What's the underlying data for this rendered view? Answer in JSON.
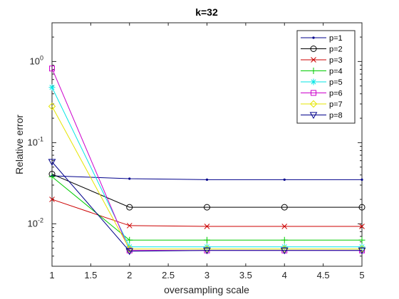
{
  "chart_data": {
    "type": "line",
    "title": "k=32",
    "xlabel": "oversampling scale",
    "ylabel": "Relative error",
    "yscale": "log",
    "xlim": [
      1,
      5
    ],
    "ylim": [
      0.003,
      3
    ],
    "grid": false,
    "legend_position": "top-right",
    "x_ticks": [
      "1",
      "1.5",
      "2",
      "2.5",
      "3",
      "3.5",
      "4",
      "4.5",
      "5"
    ],
    "y_ticks": [
      {
        "value": 0.01,
        "mantissa": "10",
        "exp": "-2"
      },
      {
        "value": 0.1,
        "mantissa": "10",
        "exp": "-1"
      },
      {
        "value": 1,
        "mantissa": "10",
        "exp": "0"
      }
    ],
    "x": [
      1,
      2,
      3,
      4,
      5
    ],
    "series": [
      {
        "name": "p=1",
        "color": "#00008b",
        "marker": "dot",
        "values": [
          0.039,
          0.036,
          0.035,
          0.035,
          0.035
        ]
      },
      {
        "name": "p=2",
        "color": "#000000",
        "marker": "circle",
        "values": [
          0.041,
          0.016,
          0.016,
          0.016,
          0.016
        ]
      },
      {
        "name": "p=3",
        "color": "#cc0000",
        "marker": "x",
        "values": [
          0.02,
          0.0095,
          0.0093,
          0.0093,
          0.0093
        ]
      },
      {
        "name": "p=4",
        "color": "#00cc00",
        "marker": "plus",
        "values": [
          0.038,
          0.0063,
          0.0063,
          0.0063,
          0.0063
        ]
      },
      {
        "name": "p=5",
        "color": "#00e5e5",
        "marker": "star",
        "values": [
          0.48,
          0.0052,
          0.0052,
          0.0052,
          0.0052
        ]
      },
      {
        "name": "p=6",
        "color": "#cc00cc",
        "marker": "square",
        "values": [
          0.82,
          0.0047,
          0.0047,
          0.0047,
          0.0047
        ]
      },
      {
        "name": "p=7",
        "color": "#e5e500",
        "marker": "diamond",
        "values": [
          0.28,
          0.0049,
          0.0049,
          0.0049,
          0.0049
        ]
      },
      {
        "name": "p=8",
        "color": "#00008b",
        "marker": "triangle",
        "values": [
          0.058,
          0.0046,
          0.0047,
          0.0047,
          0.0047
        ]
      }
    ]
  }
}
